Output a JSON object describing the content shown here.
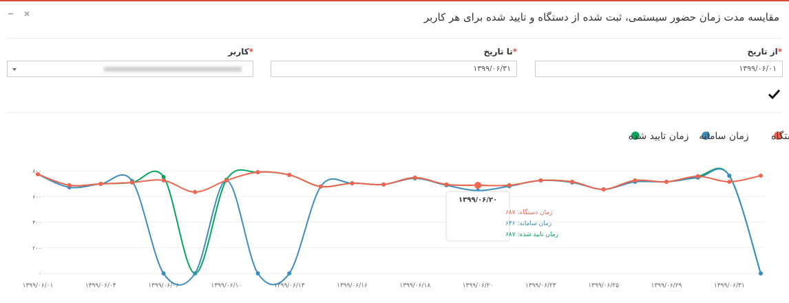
{
  "header": {
    "title": "مقایسه مدت زمان حضور سیستمی، ثبت شده از دستگاه و تایید شده برای هر کاربر"
  },
  "form": {
    "required_mark": "*",
    "fields": [
      {
        "label": "از تاریخ",
        "value": "۱۳۹۹/۰۶/۰۱"
      },
      {
        "label": "تا تاریخ",
        "value": "۱۳۹۹/۰۶/۳۱"
      },
      {
        "label": "کاربر"
      }
    ]
  },
  "chart_data": {
    "type": "line",
    "categories": [
      "۱۳۹۹/۰۶/۰۱",
      null,
      "۱۳۹۹/۰۶/۰۴",
      null,
      "۱۳۹۹/۰۶/۰۶",
      null,
      "۱۳۹۹/۰۶/۱۰",
      null,
      "۱۳۹۹/۰۶/۱۳",
      null,
      "۱۳۹۹/۰۶/۱۶",
      null,
      "۱۳۹۹/۰۶/۱۸",
      null,
      "۱۳۹۹/۰۶/۲۰",
      null,
      "۱۳۹۹/۰۶/۲۳",
      null,
      "۱۳۹۹/۰۶/۲۵",
      null,
      "۱۳۹۹/۰۶/۲۹",
      null,
      "۱۳۹۹/۰۶/۳۱",
      null
    ],
    "series": [
      {
        "name": "زمان تایید شده",
        "color": "#00a65a",
        "values": [
          773,
          687,
          698,
          709,
          752,
          0,
          730,
          789,
          768,
          677,
          703,
          693,
          746,
          693,
          687,
          687,
          725,
          714,
          655,
          725,
          714,
          757,
          762,
          0
        ]
      },
      {
        "name": "زمان سامانه",
        "color": "#3c8dbc",
        "values": [
          773,
          671,
          698,
          720,
          0,
          0,
          725,
          0,
          0,
          677,
          703,
          693,
          741,
          687,
          646,
          680,
          725,
          709,
          655,
          714,
          714,
          746,
          762,
          0
        ]
      },
      {
        "name": "زمان دستگاه",
        "color": "#f0654f",
        "values": [
          773,
          687,
          698,
          709,
          725,
          634,
          725,
          789,
          768,
          677,
          703,
          693,
          746,
          693,
          687,
          687,
          725,
          714,
          655,
          725,
          714,
          757,
          714,
          762
        ]
      }
    ],
    "ylim": [
      0,
      800
    ],
    "yticks": [
      {
        "value": 0,
        "label": "۰"
      },
      {
        "value": 200,
        "label": "۲۰۰"
      },
      {
        "value": 400,
        "label": "۴۰۰"
      },
      {
        "value": 600,
        "label": "۶۰۰"
      },
      {
        "value": 800,
        "label": "۸۰۰"
      }
    ],
    "grid": true,
    "legend": "top-right",
    "tooltip": {
      "title": "۱۳۹۹/۰۶/۲۰",
      "lines": [
        "زمان دستگاه: ۶۸۷",
        "زمان سامانه: ۶۴۶",
        "زمان تایید شده: ۶۸۷"
      ]
    }
  }
}
